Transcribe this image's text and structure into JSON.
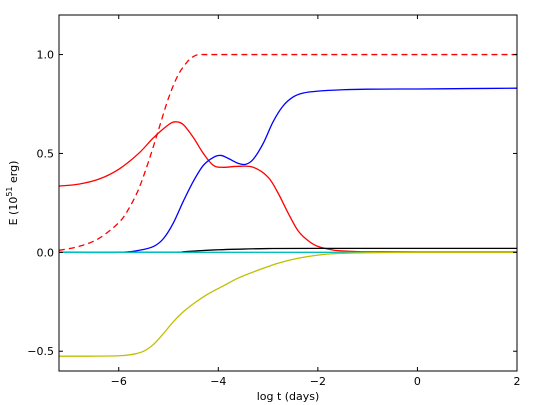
{
  "chart_data": {
    "type": "line",
    "title": "",
    "xlabel": "log t (days)",
    "ylabel": {
      "prefix": "E (10",
      "sup": "51",
      "suffix": " erg)"
    },
    "xlim": [
      -7.2,
      2.0
    ],
    "ylim": [
      -0.6,
      1.2
    ],
    "xticks": [
      -6,
      -4,
      -2,
      0,
      2
    ],
    "xtick_labels": [
      "−6",
      "−4",
      "−2",
      "0",
      "2"
    ],
    "yticks": [
      -0.5,
      0.0,
      0.5,
      1.0
    ],
    "ytick_labels": [
      "−0.5",
      "0.0",
      "0.5",
      "1.0"
    ],
    "grid": false,
    "series": [
      {
        "color": "#ff0000",
        "dash": "dashed",
        "x": [
          -7.2,
          -6.8,
          -6.4,
          -6.0,
          -5.8,
          -5.6,
          -5.4,
          -5.2,
          -5.0,
          -4.8,
          -4.6,
          -4.5,
          -4.4,
          -4.3,
          -4.0,
          -3.0,
          -2.0,
          0.0,
          2.0
        ],
        "y": [
          0.01,
          0.03,
          0.07,
          0.15,
          0.22,
          0.32,
          0.46,
          0.62,
          0.78,
          0.9,
          0.97,
          0.99,
          1.0,
          1.0,
          1.0,
          1.0,
          1.0,
          1.0,
          1.0
        ]
      },
      {
        "color": "#ff0000",
        "dash": "solid",
        "x": [
          -7.2,
          -6.8,
          -6.4,
          -6.0,
          -5.6,
          -5.3,
          -5.0,
          -4.85,
          -4.7,
          -4.5,
          -4.3,
          -4.1,
          -3.9,
          -3.6,
          -3.3,
          -3.0,
          -2.8,
          -2.6,
          -2.4,
          -2.2,
          -2.0,
          -1.7,
          -1.4,
          -1.0,
          0.0,
          2.0
        ],
        "y": [
          0.335,
          0.345,
          0.37,
          0.42,
          0.5,
          0.58,
          0.645,
          0.66,
          0.645,
          0.58,
          0.5,
          0.44,
          0.43,
          0.435,
          0.43,
          0.38,
          0.3,
          0.2,
          0.11,
          0.06,
          0.03,
          0.012,
          0.006,
          0.003,
          0.002,
          0.002
        ]
      },
      {
        "color": "#0000ff",
        "dash": "solid",
        "x": [
          -7.2,
          -6.0,
          -5.6,
          -5.3,
          -5.1,
          -4.9,
          -4.7,
          -4.5,
          -4.3,
          -4.1,
          -3.95,
          -3.8,
          -3.6,
          -3.45,
          -3.3,
          -3.1,
          -2.9,
          -2.7,
          -2.5,
          -2.3,
          -2.0,
          -1.5,
          -1.0,
          0.0,
          1.0,
          2.0
        ],
        "y": [
          0.0,
          0.0,
          0.01,
          0.03,
          0.07,
          0.15,
          0.26,
          0.36,
          0.44,
          0.48,
          0.49,
          0.475,
          0.45,
          0.445,
          0.47,
          0.55,
          0.66,
          0.74,
          0.785,
          0.805,
          0.815,
          0.822,
          0.825,
          0.826,
          0.828,
          0.83
        ]
      },
      {
        "color": "#000000",
        "dash": "solid",
        "x": [
          -7.2,
          -5.0,
          -4.7,
          -4.4,
          -4.0,
          -3.6,
          -3.0,
          -2.0,
          0.0,
          2.0
        ],
        "y": [
          0.0,
          0.0,
          0.003,
          0.008,
          0.013,
          0.016,
          0.019,
          0.02,
          0.02,
          0.02
        ]
      },
      {
        "color": "#00bfbf",
        "dash": "solid",
        "x": [
          -7.2,
          -4.0,
          -3.0,
          -2.0,
          0.0,
          2.0
        ],
        "y": [
          0.0,
          0.0,
          0.0,
          0.0,
          0.0,
          0.0
        ]
      },
      {
        "color": "#bfbf00",
        "dash": "solid",
        "x": [
          -7.2,
          -6.6,
          -6.0,
          -5.7,
          -5.5,
          -5.3,
          -5.1,
          -4.9,
          -4.7,
          -4.5,
          -4.2,
          -3.9,
          -3.6,
          -3.2,
          -2.8,
          -2.4,
          -2.0,
          -1.6,
          -1.0,
          0.0,
          2.0
        ],
        "y": [
          -0.525,
          -0.525,
          -0.523,
          -0.515,
          -0.5,
          -0.465,
          -0.41,
          -0.35,
          -0.3,
          -0.26,
          -0.21,
          -0.17,
          -0.13,
          -0.09,
          -0.055,
          -0.03,
          -0.014,
          -0.006,
          -0.002,
          0.0,
          0.0
        ]
      }
    ]
  }
}
